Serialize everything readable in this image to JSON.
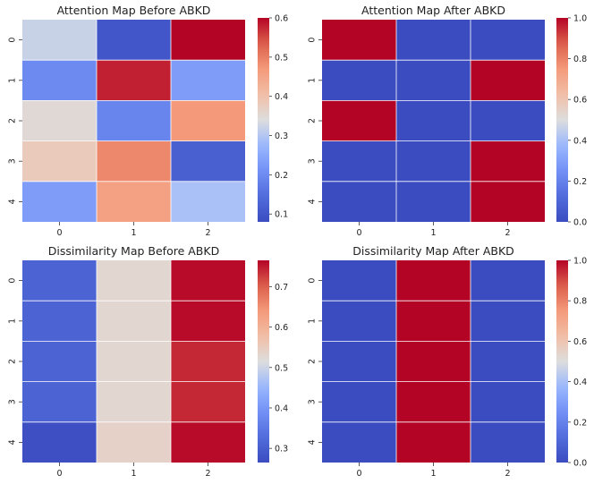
{
  "chart_data": [
    {
      "type": "heatmap",
      "title": "Attention Map Before ABKD",
      "xticklabels": [
        "0",
        "1",
        "2"
      ],
      "yticklabels": [
        "0",
        "1",
        "2",
        "3",
        "4"
      ],
      "values": [
        [
          0.32,
          0.1,
          0.6
        ],
        [
          0.2,
          0.58,
          0.23
        ],
        [
          0.35,
          0.19,
          0.47
        ],
        [
          0.38,
          0.49,
          0.12
        ],
        [
          0.23,
          0.46,
          0.29
        ]
      ],
      "vmin": 0.08,
      "vmax": 0.6,
      "colorbar_ticks": [
        0.1,
        0.2,
        0.3,
        0.4,
        0.5,
        0.6
      ],
      "colorbar_ticklabels": [
        "0.1",
        "0.2",
        "0.3",
        "0.4",
        "0.5",
        "0.6"
      ]
    },
    {
      "type": "heatmap",
      "title": "Attention Map After ABKD",
      "xticklabels": [
        "0",
        "1",
        "2"
      ],
      "yticklabels": [
        "0",
        "1",
        "2",
        "3",
        "4"
      ],
      "values": [
        [
          1,
          0,
          0
        ],
        [
          0,
          0,
          1
        ],
        [
          1,
          0,
          0
        ],
        [
          0,
          0,
          1
        ],
        [
          0,
          0,
          1
        ]
      ],
      "vmin": 0.0,
      "vmax": 1.0,
      "colorbar_ticks": [
        0.0,
        0.2,
        0.4,
        0.6,
        0.8,
        1.0
      ],
      "colorbar_ticklabels": [
        "0.0",
        "0.2",
        "0.4",
        "0.6",
        "0.8",
        "1.0"
      ]
    },
    {
      "type": "heatmap",
      "title": "Dissimilarity Map Before ABKD",
      "xticklabels": [
        "0",
        "1",
        "2"
      ],
      "yticklabels": [
        "0",
        "1",
        "2",
        "3",
        "4"
      ],
      "values": [
        [
          0.31,
          0.53,
          0.76
        ],
        [
          0.31,
          0.53,
          0.76
        ],
        [
          0.31,
          0.53,
          0.74
        ],
        [
          0.31,
          0.53,
          0.74
        ],
        [
          0.27,
          0.54,
          0.76
        ]
      ],
      "vmin": 0.265,
      "vmax": 0.765,
      "colorbar_ticks": [
        0.3,
        0.4,
        0.5,
        0.6,
        0.7
      ],
      "colorbar_ticklabels": [
        "0.3",
        "0.4",
        "0.5",
        "0.6",
        "0.7"
      ]
    },
    {
      "type": "heatmap",
      "title": "Dissimilarity Map After ABKD",
      "xticklabels": [
        "0",
        "1",
        "2"
      ],
      "yticklabels": [
        "0",
        "1",
        "2",
        "3",
        "4"
      ],
      "values": [
        [
          0,
          1,
          0
        ],
        [
          0,
          1,
          0
        ],
        [
          0,
          1,
          0
        ],
        [
          0,
          1,
          0
        ],
        [
          0,
          1,
          0
        ]
      ],
      "vmin": 0.0,
      "vmax": 1.0,
      "colorbar_ticks": [
        0.0,
        0.2,
        0.4,
        0.6,
        0.8,
        1.0
      ],
      "colorbar_ticklabels": [
        "0.0",
        "0.2",
        "0.4",
        "0.6",
        "0.8",
        "1.0"
      ]
    }
  ]
}
